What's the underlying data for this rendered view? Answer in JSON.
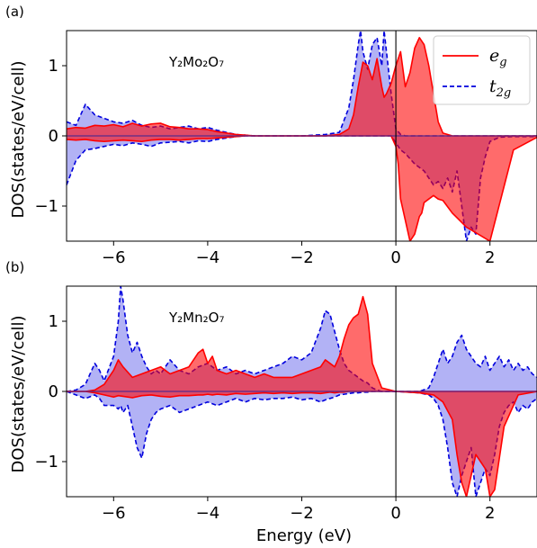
{
  "figure": {
    "x_axis_label": "Energy (eV)",
    "y_axis_label": "DOS(states/eV/cell)"
  },
  "chart_data": [
    {
      "type": "area",
      "panel_label": "(a)",
      "annotation": "Y₂Mo₂O₇",
      "xlim": [
        -7,
        3
      ],
      "ylim": [
        -1.5,
        1.5
      ],
      "xticks": [
        -6,
        -4,
        -2,
        0,
        2
      ],
      "yticks": [
        -1,
        0,
        1
      ],
      "fermi_level_line_x": 0,
      "legend_position": "top-right",
      "series": [
        {
          "name": "e_g",
          "color": "#ff0000",
          "line_style": "solid",
          "x": [
            -7.0,
            -6.8,
            -6.6,
            -6.4,
            -6.2,
            -6.0,
            -5.8,
            -5.6,
            -5.4,
            -5.2,
            -5.0,
            -4.8,
            -4.6,
            -4.4,
            -4.2,
            -4.0,
            -3.8,
            -3.6,
            -3.4,
            -3.2,
            -3.0,
            -2.5,
            -2.0,
            -1.5,
            -1.2,
            -1.0,
            -0.9,
            -0.8,
            -0.7,
            -0.6,
            -0.5,
            -0.4,
            -0.3,
            -0.25,
            -0.2,
            -0.1,
            0.0,
            0.05,
            0.1,
            0.2,
            0.3,
            0.4,
            0.5,
            0.55,
            0.6,
            0.7,
            0.8,
            0.9,
            1.0,
            1.2,
            1.5,
            2.0,
            2.5,
            3.0
          ],
          "up": [
            0.1,
            0.12,
            0.11,
            0.15,
            0.14,
            0.16,
            0.13,
            0.18,
            0.14,
            0.17,
            0.18,
            0.13,
            0.12,
            0.1,
            0.1,
            0.09,
            0.06,
            0.04,
            0.02,
            0.01,
            0.0,
            0.0,
            0.0,
            0.0,
            0.02,
            0.1,
            0.3,
            0.7,
            1.05,
            1.0,
            0.8,
            1.1,
            0.7,
            0.55,
            0.6,
            0.75,
            1.0,
            1.1,
            1.2,
            0.7,
            0.9,
            1.25,
            1.4,
            1.35,
            1.3,
            1.0,
            0.6,
            0.2,
            0.04,
            0.0,
            0.0,
            0.0,
            0.0,
            0.0
          ],
          "down": [
            -0.05,
            -0.06,
            -0.05,
            -0.07,
            -0.08,
            -0.07,
            -0.06,
            -0.07,
            -0.08,
            -0.06,
            -0.05,
            -0.05,
            -0.06,
            -0.05,
            -0.04,
            -0.04,
            -0.03,
            -0.02,
            -0.01,
            0.0,
            0.0,
            0.0,
            0.0,
            0.0,
            0.0,
            0.0,
            0.0,
            0.0,
            0.0,
            0.0,
            0.0,
            0.0,
            0.0,
            0.0,
            0.0,
            0.0,
            -0.15,
            -0.4,
            -0.9,
            -1.2,
            -1.5,
            -1.4,
            -1.15,
            -1.1,
            -0.95,
            -0.9,
            -0.85,
            -0.9,
            -0.92,
            -1.1,
            -1.3,
            -1.5,
            -0.2,
            -0.02
          ]
        },
        {
          "name": "t_2g",
          "color": "#0000dd",
          "line_style": "dashed",
          "x": [
            -7.0,
            -6.8,
            -6.6,
            -6.4,
            -6.2,
            -6.0,
            -5.8,
            -5.6,
            -5.4,
            -5.2,
            -5.0,
            -4.8,
            -4.6,
            -4.4,
            -4.2,
            -4.0,
            -3.8,
            -3.6,
            -3.4,
            -3.2,
            -3.0,
            -2.5,
            -2.0,
            -1.5,
            -1.2,
            -1.0,
            -0.9,
            -0.8,
            -0.75,
            -0.7,
            -0.6,
            -0.5,
            -0.4,
            -0.3,
            -0.25,
            -0.2,
            -0.1,
            0.0,
            0.1,
            0.2,
            0.4,
            0.6,
            0.8,
            0.9,
            1.0,
            1.1,
            1.2,
            1.3,
            1.4,
            1.5,
            1.6,
            1.7,
            1.8,
            1.9,
            2.0,
            2.2,
            2.5,
            3.0
          ],
          "up": [
            0.2,
            0.15,
            0.45,
            0.3,
            0.25,
            0.2,
            0.18,
            0.22,
            0.15,
            0.12,
            0.14,
            0.1,
            0.12,
            0.14,
            0.1,
            0.12,
            0.08,
            0.05,
            0.02,
            0.01,
            0.0,
            0.0,
            0.0,
            0.02,
            0.05,
            0.4,
            0.8,
            1.3,
            1.5,
            1.2,
            0.95,
            1.3,
            1.4,
            1.0,
            1.5,
            1.2,
            0.6,
            0.1,
            0.02,
            0.0,
            0.0,
            0.0,
            0.0,
            0.0,
            0.0,
            0.0,
            0.0,
            0.0,
            0.0,
            0.0,
            0.0,
            0.0,
            0.0,
            0.0,
            0.0,
            0.0,
            0.0,
            0.0
          ],
          "down": [
            -0.7,
            -0.35,
            -0.2,
            -0.18,
            -0.15,
            -0.12,
            -0.14,
            -0.1,
            -0.12,
            -0.15,
            -0.1,
            -0.09,
            -0.08,
            -0.1,
            -0.07,
            -0.08,
            -0.05,
            -0.03,
            -0.01,
            0.0,
            0.0,
            0.0,
            0.0,
            0.0,
            0.0,
            0.0,
            0.0,
            0.0,
            0.0,
            0.0,
            0.0,
            0.0,
            0.0,
            0.0,
            0.0,
            0.0,
            0.0,
            -0.1,
            -0.2,
            -0.25,
            -0.4,
            -0.5,
            -0.7,
            -0.65,
            -0.75,
            -0.6,
            -0.8,
            -0.5,
            -1.0,
            -1.5,
            -1.3,
            -1.4,
            -0.6,
            -0.3,
            -0.08,
            -0.02,
            -0.01,
            -0.01
          ]
        }
      ]
    },
    {
      "type": "area",
      "panel_label": "(b)",
      "annotation": "Y₂Mn₂O₇",
      "xlim": [
        -7,
        3
      ],
      "ylim": [
        -1.5,
        1.5
      ],
      "xticks": [
        -6,
        -4,
        -2,
        0,
        2
      ],
      "yticks": [
        -1,
        0,
        1
      ],
      "fermi_level_line_x": 0,
      "series": [
        {
          "name": "e_g",
          "color": "#ff0000",
          "line_style": "solid",
          "x": [
            -7.0,
            -6.6,
            -6.4,
            -6.2,
            -6.0,
            -5.9,
            -5.8,
            -5.6,
            -5.4,
            -5.2,
            -5.0,
            -4.8,
            -4.6,
            -4.4,
            -4.2,
            -4.1,
            -4.0,
            -3.9,
            -3.8,
            -3.6,
            -3.4,
            -3.2,
            -3.0,
            -2.8,
            -2.6,
            -2.4,
            -2.2,
            -2.0,
            -1.8,
            -1.6,
            -1.5,
            -1.4,
            -1.3,
            -1.2,
            -1.1,
            -1.0,
            -0.9,
            -0.8,
            -0.7,
            -0.6,
            -0.5,
            -0.3,
            0.0,
            0.5,
            0.8,
            1.0,
            1.2,
            1.3,
            1.4,
            1.5,
            1.6,
            1.7,
            1.8,
            1.9,
            2.0,
            2.1,
            2.3,
            2.6,
            3.0
          ],
          "up": [
            0.0,
            0.0,
            0.02,
            0.1,
            0.3,
            0.45,
            0.35,
            0.2,
            0.25,
            0.3,
            0.35,
            0.25,
            0.3,
            0.35,
            0.55,
            0.6,
            0.4,
            0.5,
            0.3,
            0.25,
            0.3,
            0.25,
            0.2,
            0.25,
            0.2,
            0.2,
            0.2,
            0.25,
            0.3,
            0.35,
            0.45,
            0.4,
            0.35,
            0.5,
            0.75,
            0.95,
            1.05,
            1.1,
            1.35,
            1.1,
            0.4,
            0.05,
            0.0,
            0.0,
            0.0,
            0.0,
            0.0,
            0.0,
            0.0,
            0.0,
            0.0,
            0.0,
            0.0,
            0.0,
            0.0,
            0.0,
            0.0,
            0.0,
            0.0
          ],
          "down": [
            0.0,
            0.0,
            -0.02,
            -0.05,
            -0.08,
            -0.06,
            -0.07,
            -0.09,
            -0.06,
            -0.05,
            -0.07,
            -0.08,
            -0.06,
            -0.06,
            -0.05,
            -0.05,
            -0.04,
            -0.05,
            -0.04,
            -0.05,
            -0.03,
            -0.04,
            -0.03,
            -0.02,
            -0.03,
            -0.02,
            -0.03,
            -0.02,
            -0.02,
            -0.03,
            -0.02,
            -0.01,
            -0.02,
            -0.01,
            -0.01,
            0.0,
            0.0,
            0.0,
            0.0,
            0.0,
            0.0,
            0.0,
            0.0,
            -0.02,
            -0.05,
            -0.15,
            -0.4,
            -0.9,
            -1.3,
            -1.5,
            -1.2,
            -0.9,
            -1.0,
            -1.1,
            -1.5,
            -1.4,
            -0.5,
            -0.05,
            0.0
          ]
        },
        {
          "name": "t_2g",
          "color": "#0000dd",
          "line_style": "dashed",
          "x": [
            -7.0,
            -6.8,
            -6.6,
            -6.4,
            -6.3,
            -6.2,
            -6.0,
            -5.9,
            -5.85,
            -5.8,
            -5.7,
            -5.6,
            -5.5,
            -5.4,
            -5.3,
            -5.2,
            -5.1,
            -5.0,
            -4.8,
            -4.6,
            -4.4,
            -4.2,
            -4.0,
            -3.8,
            -3.6,
            -3.4,
            -3.2,
            -3.0,
            -2.8,
            -2.6,
            -2.4,
            -2.2,
            -2.0,
            -1.8,
            -1.6,
            -1.5,
            -1.4,
            -1.3,
            -1.2,
            -1.1,
            -1.0,
            -0.9,
            -0.8,
            -0.7,
            -0.6,
            -0.5,
            -0.4,
            -0.3,
            0.0,
            0.5,
            0.7,
            0.8,
            0.9,
            1.0,
            1.1,
            1.2,
            1.3,
            1.4,
            1.5,
            1.6,
            1.7,
            1.8,
            1.9,
            2.0,
            2.1,
            2.2,
            2.3,
            2.4,
            2.5,
            2.6,
            2.7,
            2.8,
            2.9,
            3.0
          ],
          "up": [
            0.0,
            0.02,
            0.1,
            0.4,
            0.3,
            0.15,
            0.5,
            1.0,
            1.5,
            1.3,
            0.8,
            0.55,
            0.7,
            0.5,
            0.35,
            0.25,
            0.3,
            0.25,
            0.45,
            0.3,
            0.25,
            0.35,
            0.4,
            0.3,
            0.35,
            0.25,
            0.3,
            0.25,
            0.3,
            0.35,
            0.4,
            0.5,
            0.45,
            0.55,
            0.9,
            1.15,
            1.1,
            0.85,
            0.6,
            0.4,
            0.3,
            0.25,
            0.2,
            0.15,
            0.12,
            0.05,
            0.02,
            0.0,
            0.0,
            0.0,
            0.05,
            0.2,
            0.4,
            0.6,
            0.4,
            0.5,
            0.7,
            0.8,
            0.6,
            0.5,
            0.4,
            0.35,
            0.5,
            0.3,
            0.4,
            0.5,
            0.35,
            0.45,
            0.3,
            0.4,
            0.3,
            0.35,
            0.25,
            0.2
          ],
          "down": [
            0.0,
            -0.05,
            -0.1,
            -0.05,
            -0.1,
            -0.2,
            -0.2,
            -0.25,
            -0.2,
            -0.3,
            -0.2,
            -0.5,
            -0.8,
            -0.95,
            -0.6,
            -0.4,
            -0.3,
            -0.25,
            -0.2,
            -0.3,
            -0.25,
            -0.2,
            -0.15,
            -0.2,
            -0.15,
            -0.1,
            -0.15,
            -0.1,
            -0.12,
            -0.1,
            -0.1,
            -0.08,
            -0.12,
            -0.1,
            -0.15,
            -0.12,
            -0.1,
            -0.08,
            -0.05,
            -0.04,
            -0.03,
            -0.02,
            -0.02,
            -0.01,
            -0.01,
            0.0,
            0.0,
            0.0,
            0.0,
            -0.02,
            -0.05,
            -0.1,
            -0.2,
            -0.4,
            -0.8,
            -1.3,
            -1.5,
            -1.2,
            -1.0,
            -0.8,
            -1.5,
            -1.3,
            -1.1,
            -1.2,
            -0.9,
            -0.5,
            -0.3,
            -0.2,
            -0.15,
            -0.3,
            -0.2,
            -0.25,
            -0.15,
            -0.1
          ]
        }
      ]
    }
  ]
}
